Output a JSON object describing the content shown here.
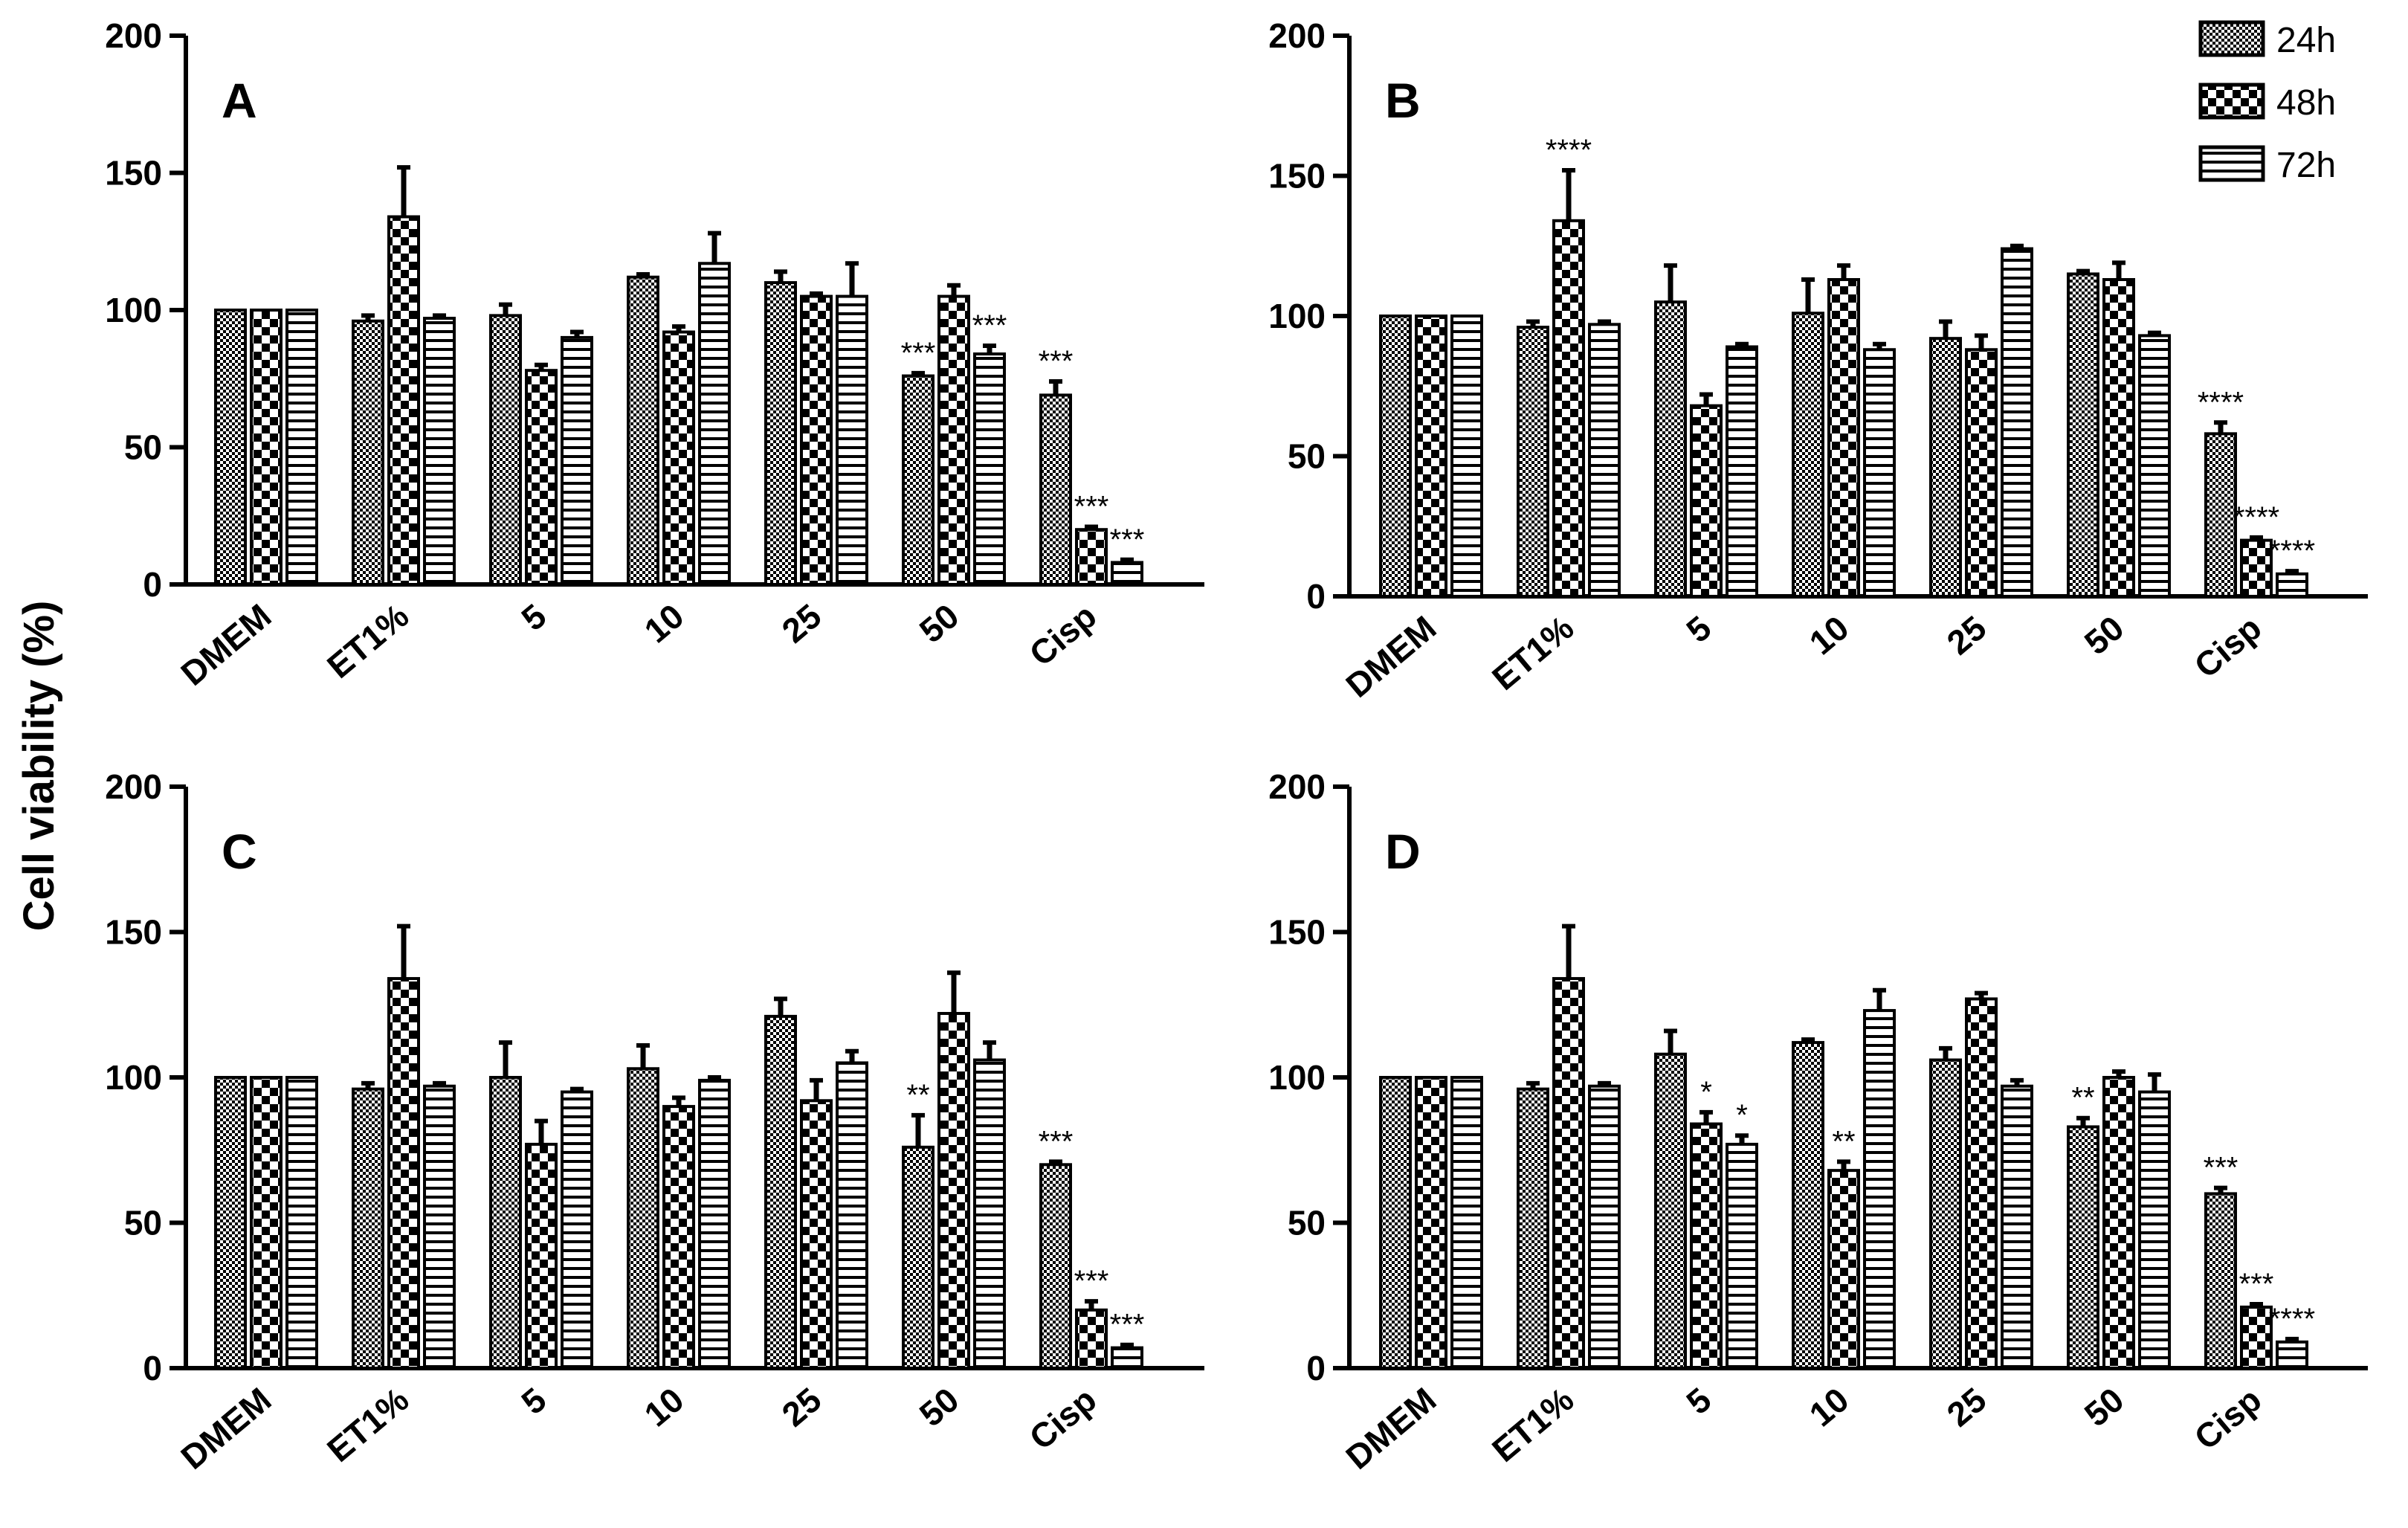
{
  "figure": {
    "ylabel": "Cell viability (%)",
    "legend": [
      {
        "label": "24h",
        "pattern": "pat24"
      },
      {
        "label": "48h",
        "pattern": "pat48"
      },
      {
        "label": "72h",
        "pattern": "pat72"
      }
    ]
  },
  "chart_data": [
    {
      "panel": "A",
      "type": "bar",
      "ylim": [
        0,
        200
      ],
      "yticks": [
        "0",
        "50",
        "100",
        "150",
        "200"
      ],
      "categories": [
        "DMEM",
        "ET1%",
        "5",
        "10",
        "25",
        "50",
        "Cisp"
      ],
      "series": [
        {
          "name": "24h",
          "values": [
            100,
            96,
            98,
            112,
            110,
            76,
            69
          ],
          "errors": [
            0,
            2,
            4,
            1,
            4,
            1,
            5
          ],
          "stars": [
            "",
            "",
            "",
            "",
            "",
            "***",
            "***"
          ]
        },
        {
          "name": "48h",
          "values": [
            100,
            134,
            78,
            92,
            105,
            105,
            20
          ],
          "errors": [
            0,
            18,
            2,
            2,
            1,
            4,
            1
          ],
          "stars": [
            "",
            "",
            "",
            "",
            "",
            "",
            "***"
          ]
        },
        {
          "name": "72h",
          "values": [
            100,
            97,
            90,
            117,
            105,
            84,
            8
          ],
          "errors": [
            0,
            1,
            2,
            11,
            12,
            3,
            1
          ],
          "stars": [
            "",
            "",
            "",
            "",
            "",
            "***",
            "***"
          ]
        }
      ]
    },
    {
      "panel": "B",
      "type": "bar",
      "ylim": [
        0,
        200
      ],
      "yticks": [
        "0",
        "50",
        "100",
        "150",
        "200"
      ],
      "categories": [
        "DMEM",
        "ET1%",
        "5",
        "10",
        "25",
        "50",
        "Cisp"
      ],
      "series": [
        {
          "name": "24h",
          "values": [
            100,
            96,
            105,
            101,
            92,
            115,
            58
          ],
          "errors": [
            0,
            2,
            13,
            12,
            6,
            1,
            4
          ],
          "stars": [
            "",
            "",
            "",
            "",
            "",
            "",
            "****"
          ]
        },
        {
          "name": "48h",
          "values": [
            100,
            134,
            68,
            113,
            88,
            113,
            20
          ],
          "errors": [
            0,
            18,
            4,
            5,
            5,
            6,
            1
          ],
          "stars": [
            "",
            "****",
            "",
            "",
            "",
            "",
            "****"
          ]
        },
        {
          "name": "72h",
          "values": [
            100,
            97,
            89,
            88,
            124,
            93,
            8
          ],
          "errors": [
            0,
            1,
            1,
            2,
            1,
            1,
            1
          ],
          "stars": [
            "",
            "",
            "",
            "",
            "",
            "",
            "****"
          ]
        }
      ]
    },
    {
      "panel": "C",
      "type": "bar",
      "ylim": [
        0,
        200
      ],
      "yticks": [
        "0",
        "50",
        "100",
        "150",
        "200"
      ],
      "categories": [
        "DMEM",
        "ET1%",
        "5",
        "10",
        "25",
        "50",
        "Cisp"
      ],
      "series": [
        {
          "name": "24h",
          "values": [
            100,
            96,
            100,
            103,
            121,
            76,
            70
          ],
          "errors": [
            0,
            2,
            12,
            8,
            6,
            11,
            1
          ],
          "stars": [
            "",
            "",
            "",
            "",
            "",
            "**",
            "***"
          ]
        },
        {
          "name": "48h",
          "values": [
            100,
            134,
            77,
            90,
            92,
            122,
            20
          ],
          "errors": [
            0,
            18,
            8,
            3,
            7,
            14,
            3
          ],
          "stars": [
            "",
            "",
            "",
            "",
            "",
            "",
            "***"
          ]
        },
        {
          "name": "72h",
          "values": [
            100,
            97,
            95,
            99,
            105,
            106,
            7
          ],
          "errors": [
            0,
            1,
            1,
            1,
            4,
            6,
            1
          ],
          "stars": [
            "",
            "",
            "",
            "",
            "",
            "",
            "***"
          ]
        }
      ]
    },
    {
      "panel": "D",
      "type": "bar",
      "ylim": [
        0,
        200
      ],
      "yticks": [
        "0",
        "50",
        "100",
        "150",
        "200"
      ],
      "categories": [
        "DMEM",
        "ET1%",
        "5",
        "10",
        "25",
        "50",
        "Cisp"
      ],
      "series": [
        {
          "name": "24h",
          "values": [
            100,
            96,
            108,
            112,
            106,
            83,
            60
          ],
          "errors": [
            0,
            2,
            8,
            1,
            4,
            3,
            2
          ],
          "stars": [
            "",
            "",
            "",
            "",
            "",
            "**",
            "***"
          ]
        },
        {
          "name": "48h",
          "values": [
            100,
            134,
            84,
            68,
            127,
            100,
            21
          ],
          "errors": [
            0,
            18,
            4,
            3,
            2,
            2,
            1
          ],
          "stars": [
            "",
            "",
            "*",
            "**",
            "",
            "",
            "***"
          ]
        },
        {
          "name": "72h",
          "values": [
            100,
            97,
            77,
            123,
            97,
            95,
            9
          ],
          "errors": [
            0,
            1,
            3,
            7,
            2,
            6,
            1
          ],
          "stars": [
            "",
            "",
            "*",
            "",
            "",
            "",
            "****"
          ]
        }
      ]
    }
  ]
}
